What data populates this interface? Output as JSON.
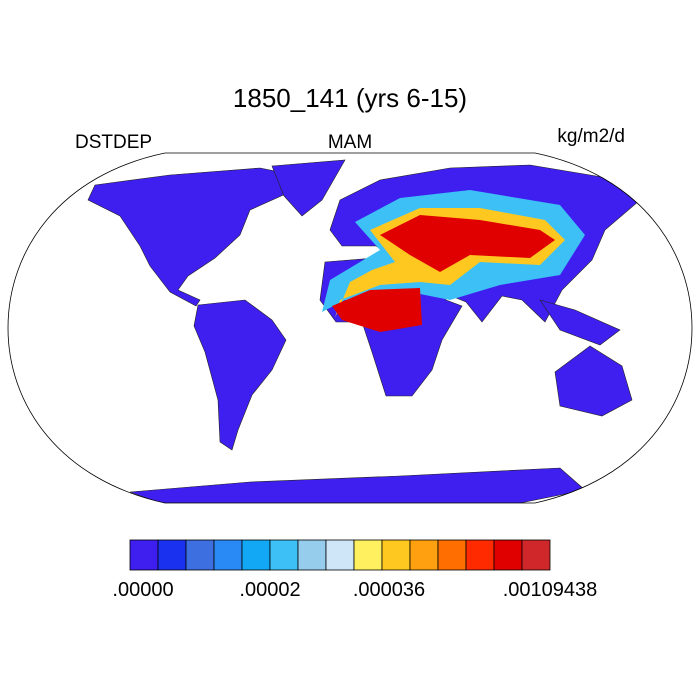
{
  "title": "1850_141 (yrs 6-15)",
  "left_string": "DSTDEP",
  "center_string": "MAM",
  "right_string": "kg/m2/d",
  "colorbar": {
    "colors": [
      "#3f1ff0",
      "#1a32f0",
      "#3e6fe0",
      "#2a8af5",
      "#12a8f5",
      "#3cc0f5",
      "#96ccec",
      "#cfe6f8",
      "#fff060",
      "#ffc820",
      "#ffa010",
      "#ff6e00",
      "#ff2a00",
      "#e00000",
      "#d0282a"
    ],
    "labels": [
      ".00000",
      ".00002",
      ".000036",
      ".00109438"
    ]
  }
}
